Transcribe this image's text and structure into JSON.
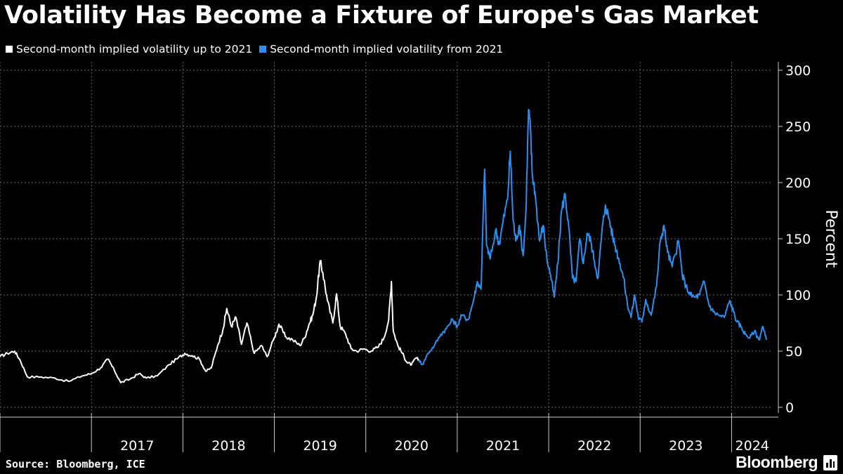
{
  "header": {
    "title": "Volatility Has Become a Fixture of Europe's Gas Market"
  },
  "footer": {
    "source": "Source: Bloomberg, ICE",
    "brand": "Bloomberg"
  },
  "colors": {
    "background": "#000000",
    "series_pre": "#ffffff",
    "series_post": "#2c8ff0",
    "grid": "#666666",
    "axis": "#cccccc"
  },
  "chart_data": {
    "type": "line",
    "title": "Volatility Has Become a Fixture of Europe's Gas Market",
    "ylabel": "Percent",
    "xlabel": "",
    "ylim": [
      0,
      300
    ],
    "yticks": [
      0,
      50,
      100,
      150,
      200,
      250,
      300
    ],
    "ytick_labels": [
      "0",
      "50",
      "100",
      "150",
      "200",
      "250",
      "300"
    ],
    "xlim": [
      2016.0,
      2024.45
    ],
    "year_labels": [
      "2017",
      "2018",
      "2019",
      "2020",
      "2021",
      "2022",
      "2023",
      "2024"
    ],
    "grid": true,
    "legend_position": "top-left",
    "series": [
      {
        "name": "Second-month implied volatility up to 2021",
        "color": "#ffffff",
        "points": [
          [
            2016.0,
            45
          ],
          [
            2016.08,
            48
          ],
          [
            2016.16,
            50
          ],
          [
            2016.22,
            42
          ],
          [
            2016.3,
            27
          ],
          [
            2016.45,
            27
          ],
          [
            2016.6,
            26
          ],
          [
            2016.75,
            23
          ],
          [
            2016.9,
            28
          ],
          [
            2017.0,
            30
          ],
          [
            2017.1,
            35
          ],
          [
            2017.18,
            43
          ],
          [
            2017.25,
            33
          ],
          [
            2017.32,
            22
          ],
          [
            2017.42,
            25
          ],
          [
            2017.52,
            30
          ],
          [
            2017.6,
            26
          ],
          [
            2017.72,
            28
          ],
          [
            2017.85,
            38
          ],
          [
            2017.95,
            44
          ],
          [
            2018.02,
            48
          ],
          [
            2018.1,
            46
          ],
          [
            2018.18,
            43
          ],
          [
            2018.25,
            32
          ],
          [
            2018.31,
            35
          ],
          [
            2018.38,
            55
          ],
          [
            2018.44,
            70
          ],
          [
            2018.48,
            88
          ],
          [
            2018.53,
            72
          ],
          [
            2018.58,
            80
          ],
          [
            2018.64,
            56
          ],
          [
            2018.7,
            75
          ],
          [
            2018.78,
            48
          ],
          [
            2018.86,
            55
          ],
          [
            2018.92,
            45
          ],
          [
            2019.0,
            62
          ],
          [
            2019.05,
            74
          ],
          [
            2019.12,
            63
          ],
          [
            2019.2,
            60
          ],
          [
            2019.28,
            55
          ],
          [
            2019.33,
            62
          ],
          [
            2019.38,
            74
          ],
          [
            2019.42,
            82
          ],
          [
            2019.46,
            98
          ],
          [
            2019.5,
            130
          ],
          [
            2019.53,
            120
          ],
          [
            2019.58,
            95
          ],
          [
            2019.64,
            75
          ],
          [
            2019.68,
            101
          ],
          [
            2019.72,
            72
          ],
          [
            2019.78,
            65
          ],
          [
            2019.84,
            52
          ],
          [
            2019.9,
            50
          ],
          [
            2019.98,
            52
          ],
          [
            2020.06,
            50
          ],
          [
            2020.14,
            54
          ],
          [
            2020.2,
            62
          ],
          [
            2020.25,
            78
          ],
          [
            2020.28,
            112
          ],
          [
            2020.3,
            68
          ],
          [
            2020.35,
            55
          ],
          [
            2020.4,
            48
          ],
          [
            2020.45,
            40
          ],
          [
            2020.5,
            38
          ],
          [
            2020.55,
            44
          ],
          [
            2020.58,
            42
          ]
        ]
      },
      {
        "name": "Second-month implied volatility from 2021",
        "color": "#2c8ff0",
        "points": [
          [
            2020.58,
            42
          ],
          [
            2020.62,
            38
          ],
          [
            2020.68,
            48
          ],
          [
            2020.75,
            55
          ],
          [
            2020.82,
            65
          ],
          [
            2020.88,
            70
          ],
          [
            2020.95,
            78
          ],
          [
            2021.0,
            72
          ],
          [
            2021.05,
            82
          ],
          [
            2021.12,
            78
          ],
          [
            2021.18,
            96
          ],
          [
            2021.22,
            112
          ],
          [
            2021.26,
            105
          ],
          [
            2021.28,
            160
          ],
          [
            2021.3,
            212
          ],
          [
            2021.32,
            145
          ],
          [
            2021.36,
            132
          ],
          [
            2021.42,
            158
          ],
          [
            2021.46,
            145
          ],
          [
            2021.5,
            165
          ],
          [
            2021.55,
            185
          ],
          [
            2021.58,
            228
          ],
          [
            2021.61,
            168
          ],
          [
            2021.64,
            148
          ],
          [
            2021.68,
            162
          ],
          [
            2021.72,
            135
          ],
          [
            2021.75,
            172
          ],
          [
            2021.78,
            265
          ],
          [
            2021.8,
            248
          ],
          [
            2021.82,
            208
          ],
          [
            2021.85,
            192
          ],
          [
            2021.9,
            148
          ],
          [
            2021.94,
            162
          ],
          [
            2021.98,
            132
          ],
          [
            2022.02,
            118
          ],
          [
            2022.06,
            98
          ],
          [
            2022.1,
            128
          ],
          [
            2022.14,
            175
          ],
          [
            2022.18,
            190
          ],
          [
            2022.22,
            160
          ],
          [
            2022.26,
            115
          ],
          [
            2022.3,
            112
          ],
          [
            2022.34,
            150
          ],
          [
            2022.38,
            128
          ],
          [
            2022.42,
            155
          ],
          [
            2022.46,
            148
          ],
          [
            2022.5,
            130
          ],
          [
            2022.54,
            115
          ],
          [
            2022.58,
            155
          ],
          [
            2022.62,
            180
          ],
          [
            2022.66,
            168
          ],
          [
            2022.7,
            152
          ],
          [
            2022.74,
            140
          ],
          [
            2022.78,
            128
          ],
          [
            2022.82,
            115
          ],
          [
            2022.86,
            92
          ],
          [
            2022.9,
            80
          ],
          [
            2022.94,
            100
          ],
          [
            2022.98,
            80
          ],
          [
            2023.02,
            76
          ],
          [
            2023.06,
            96
          ],
          [
            2023.12,
            82
          ],
          [
            2023.18,
            108
          ],
          [
            2023.22,
            148
          ],
          [
            2023.26,
            162
          ],
          [
            2023.3,
            138
          ],
          [
            2023.35,
            125
          ],
          [
            2023.42,
            148
          ],
          [
            2023.46,
            118
          ],
          [
            2023.5,
            108
          ],
          [
            2023.55,
            100
          ],
          [
            2023.6,
            98
          ],
          [
            2023.65,
            100
          ],
          [
            2023.7,
            112
          ],
          [
            2023.75,
            92
          ],
          [
            2023.8,
            85
          ],
          [
            2023.86,
            82
          ],
          [
            2023.92,
            80
          ],
          [
            2023.98,
            95
          ],
          [
            2024.02,
            85
          ],
          [
            2024.06,
            76
          ],
          [
            2024.1,
            72
          ],
          [
            2024.15,
            65
          ],
          [
            2024.2,
            62
          ],
          [
            2024.25,
            68
          ],
          [
            2024.3,
            60
          ],
          [
            2024.34,
            72
          ],
          [
            2024.38,
            60
          ]
        ]
      }
    ]
  }
}
